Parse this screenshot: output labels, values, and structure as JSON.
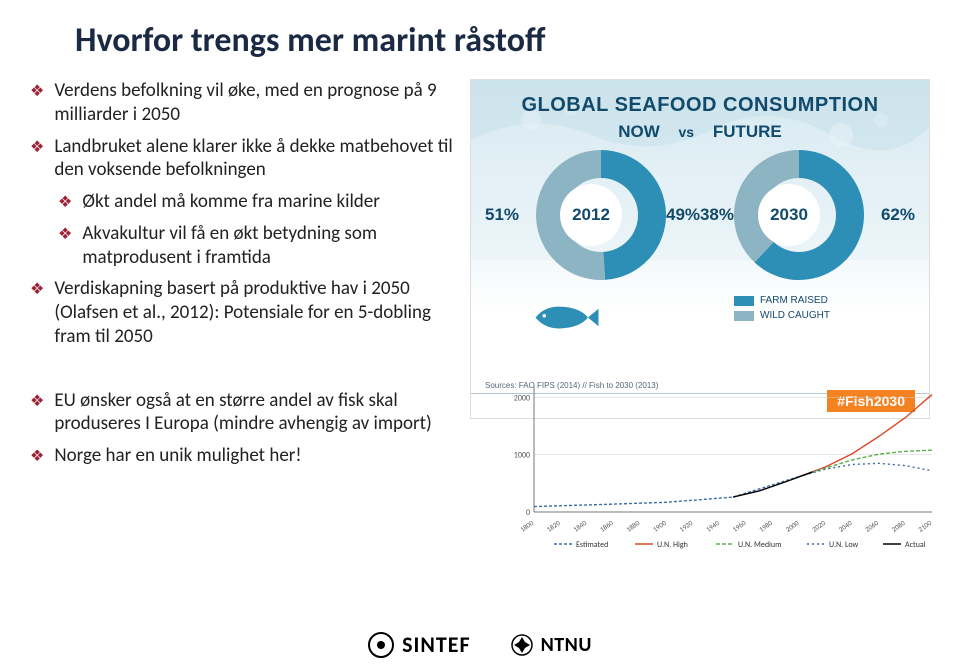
{
  "title": "Hvorfor trengs mer marint råstoff",
  "bullets": [
    {
      "text": "Verdens befolkning vil øke, med en prognose på 9 milliarder i 2050",
      "sub": false
    },
    {
      "text": "Landbruket alene klarer ikke å dekke matbehovet til den voksende befolkningen",
      "sub": false
    },
    {
      "text": "Økt andel må komme fra marine kilder",
      "sub": true
    },
    {
      "text": "Akvakultur vil få en økt betydning som matprodusent i framtida",
      "sub": true
    },
    {
      "text": "Verdiskapning basert på produktive hav i 2050 (Olafsen et al., 2012): Potensiale for en 5-dobling fram til 2050",
      "sub": false
    },
    {
      "text": "EU ønsker også at en større andel av fisk skal produseres I Europa (mindre avhengig av import)",
      "sub": false
    },
    {
      "text": "Norge har en unik mulighet her!",
      "sub": false
    }
  ],
  "bullet_color": "#9b2335",
  "infographic": {
    "title": "GLOBAL SEAFOOD CONSUMPTION",
    "now_label": "NOW",
    "vs_label": "vs",
    "future_label": "FUTURE",
    "donuts": [
      {
        "year": "2012",
        "farm_pct": 49,
        "wild_pct": 51,
        "left_label": "51%",
        "right_label": "49%"
      },
      {
        "year": "2030",
        "farm_pct": 62,
        "wild_pct": 38,
        "left_label": "38%",
        "right_label": "62%"
      }
    ],
    "colors": {
      "farm": "#2d8fb5",
      "wild": "#8db4c2",
      "text": "#124a6b",
      "bg_top": "#d4e8f0"
    },
    "legend": [
      {
        "label": "FARM RAISED",
        "color": "#2d8fb5"
      },
      {
        "label": "WILD CAUGHT",
        "color": "#8db4c2"
      }
    ],
    "sources": "Sources: FAO FIPS (2014) // Fish to 2030 (2013)",
    "hashtag": "#Fish2030"
  },
  "line_chart": {
    "x_ticks": [
      "1800",
      "1820",
      "1840",
      "1860",
      "1880",
      "1900",
      "1920",
      "1940",
      "1960",
      "1980",
      "2000",
      "2020",
      "2040",
      "2060",
      "2080",
      "2100"
    ],
    "y_ticks": [
      "0",
      "1000",
      "2000"
    ],
    "ylim": [
      0,
      2200
    ],
    "series": [
      {
        "name": "Estimated",
        "color": "#3a6ea5",
        "dash": "3,2",
        "points": [
          [
            1800,
            95
          ],
          [
            1850,
            130
          ],
          [
            1900,
            170
          ],
          [
            1950,
            260
          ],
          [
            2000,
            620
          ]
        ]
      },
      {
        "name": "U.N. High",
        "color": "#d94a2b",
        "dash": "none",
        "points": [
          [
            2000,
            620
          ],
          [
            2020,
            790
          ],
          [
            2040,
            1020
          ],
          [
            2060,
            1320
          ],
          [
            2080,
            1650
          ],
          [
            2100,
            2050
          ]
        ]
      },
      {
        "name": "U.N. Medium",
        "color": "#5ab04c",
        "dash": "4,2",
        "points": [
          [
            2000,
            620
          ],
          [
            2020,
            770
          ],
          [
            2040,
            910
          ],
          [
            2060,
            1010
          ],
          [
            2080,
            1060
          ],
          [
            2100,
            1080
          ]
        ]
      },
      {
        "name": "U.N. Low",
        "color": "#3a6ea5",
        "dash": "2,3",
        "points": [
          [
            2000,
            620
          ],
          [
            2020,
            750
          ],
          [
            2040,
            830
          ],
          [
            2060,
            850
          ],
          [
            2080,
            810
          ],
          [
            2100,
            720
          ]
        ]
      },
      {
        "name": "Actual",
        "color": "#000000",
        "dash": "none",
        "points": [
          [
            1950,
            260
          ],
          [
            1970,
            370
          ],
          [
            1990,
            530
          ],
          [
            2010,
            700
          ]
        ]
      }
    ],
    "legend": [
      "Estimated",
      "U.N. High",
      "U.N. Medium",
      "U.N. Low",
      "Actual"
    ],
    "grid_color": "#cccccc",
    "axis_color": "#777",
    "label_fontsize": 8
  },
  "logos": {
    "sintef": "SINTEF",
    "ntnu": "NTNU"
  }
}
